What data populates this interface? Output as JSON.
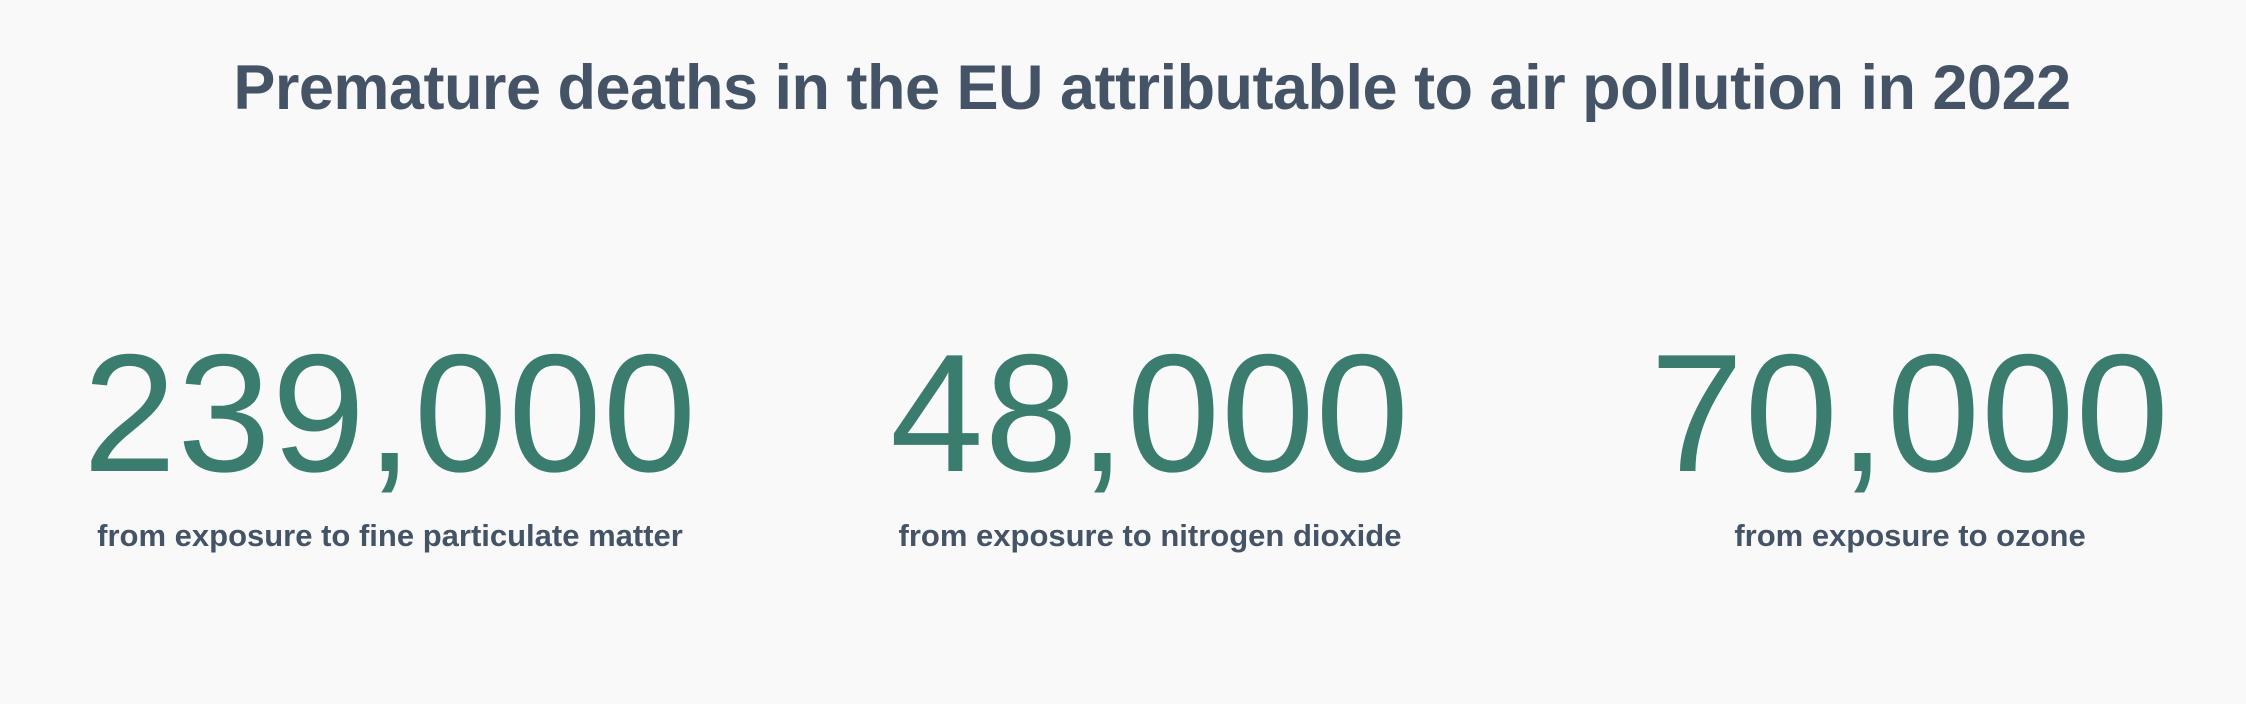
{
  "title": "Premature deaths in the EU attributable to air pollution in 2022",
  "stats": [
    {
      "value": "239,000",
      "label": "from exposure to fine particulate matter"
    },
    {
      "value": "48,000",
      "label": "from exposure to nitrogen dioxide"
    },
    {
      "value": "70,000",
      "label": "from exposure to ozone"
    }
  ],
  "colors": {
    "background": "#f9f9f9",
    "title": "#445466",
    "value": "#3a7d6e",
    "label": "#445466"
  }
}
